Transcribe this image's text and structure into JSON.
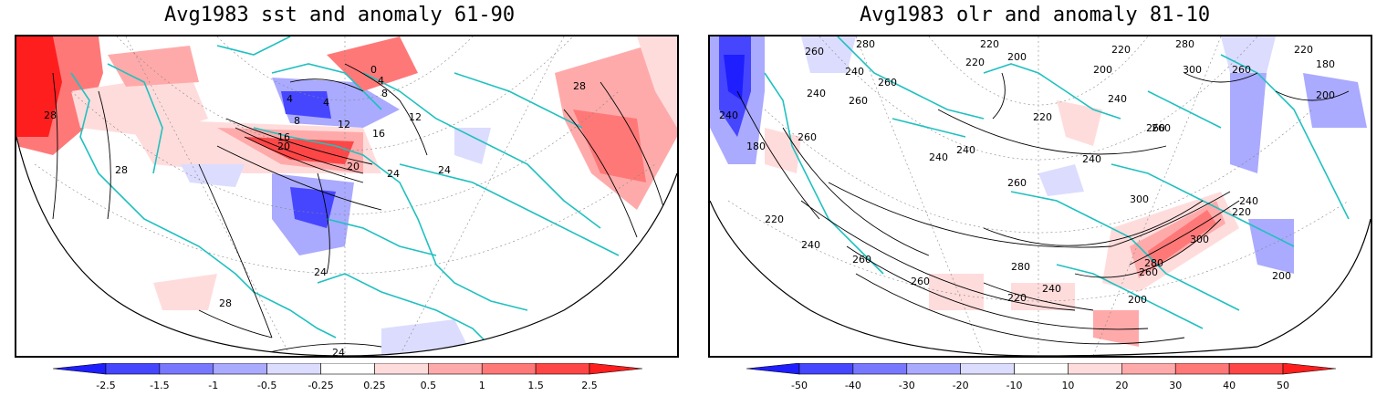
{
  "left_panel": {
    "title": "Avg1983 sst and anomaly 61-90",
    "contour_labels": [
      "0",
      "4",
      "4",
      "4",
      "8",
      "8",
      "12",
      "12",
      "16",
      "16",
      "20",
      "20",
      "24",
      "24",
      "24",
      "24",
      "28",
      "28",
      "28",
      "28"
    ],
    "colorbar_ticks": [
      "-2.5",
      "-1.5",
      "-1",
      "-0.5",
      "-0.25",
      "0.25",
      "0.5",
      "1",
      "1.5",
      "2.5"
    ]
  },
  "right_panel": {
    "title": "Avg1983 olr and anomaly 81-10",
    "contour_labels": [
      "260",
      "280",
      "220",
      "240",
      "240",
      "260",
      "220",
      "200",
      "260",
      "220",
      "280",
      "300",
      "260",
      "180",
      "220",
      "200",
      "240",
      "260",
      "220",
      "240",
      "200",
      "180",
      "260",
      "240",
      "240",
      "260",
      "300",
      "240",
      "260",
      "220",
      "240",
      "300",
      "260",
      "280",
      "280",
      "260",
      "240",
      "220",
      "200",
      "220",
      "240",
      "260",
      "200"
    ],
    "colorbar_ticks": [
      "-50",
      "-40",
      "-30",
      "-20",
      "-10",
      "10",
      "20",
      "30",
      "40",
      "50"
    ]
  },
  "colors": {
    "coastline": "#20c0c0",
    "neg": [
      "#1e1eff",
      "#4646ff",
      "#7878ff",
      "#aaaaff",
      "#dcdcff"
    ],
    "pos": [
      "#ffdcdc",
      "#ffaaaa",
      "#ff7878",
      "#ff4646",
      "#ff1e1e"
    ]
  }
}
